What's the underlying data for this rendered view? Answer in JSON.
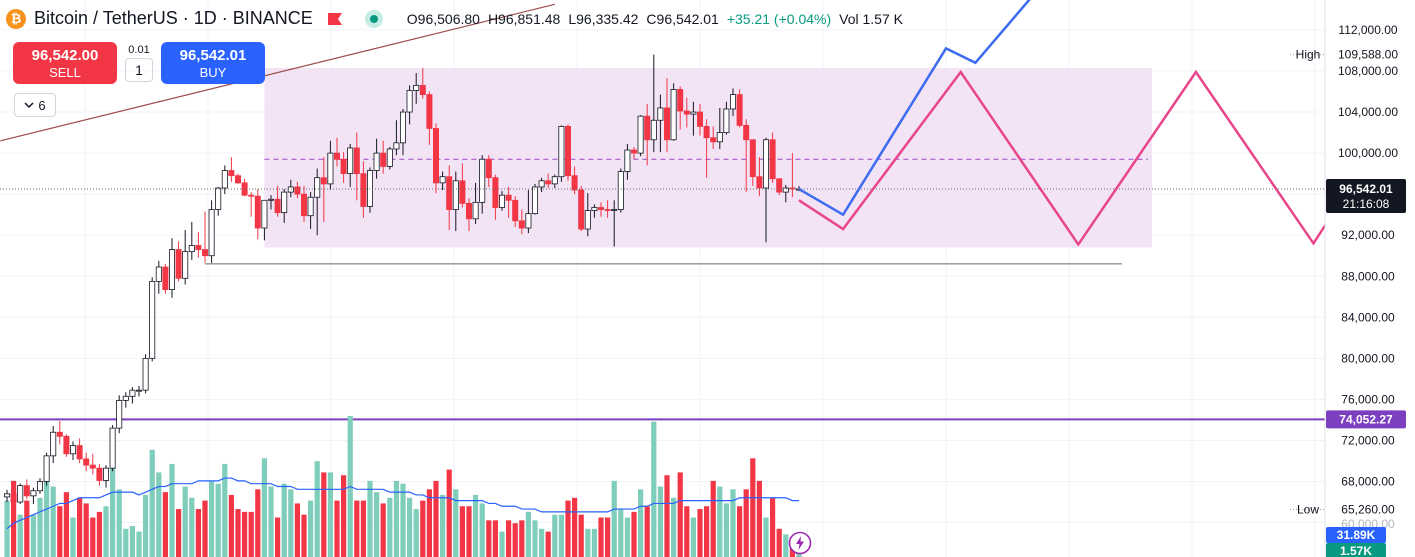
{
  "header": {
    "symbol": "Bitcoin / TetherUS · 1D · BINANCE",
    "open": "O96,506.80",
    "high": "H96,851.48",
    "low": "L96,335.42",
    "close": "C96,542.01",
    "change": "+35.21 (+0.04%)",
    "vol": "Vol 1.57 K"
  },
  "trade": {
    "sell_price": "96,542.00",
    "sell_label": "SELL",
    "buy_price": "96,542.01",
    "buy_label": "BUY",
    "step": "0.01",
    "qty": "1"
  },
  "indicators_count": "6",
  "price_axis": {
    "ticks": [
      "112,000.00",
      "108,000.00",
      "104,000.00",
      "100,000.00",
      "92,000.00",
      "88,000.00",
      "84,000.00",
      "80,000.00",
      "76,000.00",
      "72,000.00",
      "68,000.00"
    ]
  },
  "markers": {
    "high_label": "High",
    "high_value": "109,588.00",
    "low_label": "Low",
    "low_value": "65,260.00",
    "last_price": "96,542.01",
    "countdown": "21:16:08",
    "level": "74,052.27",
    "vol_avg": "31.89K",
    "vol_last": "1.57K",
    "ohlc_cut_value": "60,000.00"
  },
  "colors": {
    "up": "#089981",
    "down": "#f23645",
    "vol_up": "#7fcdbb",
    "vol_down": "#f23645",
    "range_box": "#f2e3f5",
    "level_line": "#7b3fbf",
    "projection_pink": "#e8458b",
    "projection_blue": "#3d6cf0",
    "trend_line": "#9e4a4a",
    "vol_ma": "#2962ff"
  },
  "chart_data": {
    "type": "candlestick",
    "title": "Bitcoin / TetherUS · 1D · BINANCE",
    "ylim": [
      60000,
      114000
    ],
    "candles": [
      [
        66500,
        67200,
        66000,
        66800
      ],
      [
        66800,
        67500,
        66400,
        66000
      ],
      [
        66000,
        67800,
        65800,
        67600
      ],
      [
        67600,
        68200,
        66300,
        66600
      ],
      [
        66600,
        67400,
        65800,
        67100
      ],
      [
        67100,
        68300,
        66800,
        68000
      ],
      [
        68000,
        70800,
        67600,
        70500
      ],
      [
        70500,
        73400,
        69800,
        72800
      ],
      [
        72800,
        73900,
        71600,
        72400
      ],
      [
        72400,
        72600,
        70400,
        70700
      ],
      [
        70700,
        71900,
        70100,
        71500
      ],
      [
        71500,
        72200,
        69800,
        70200
      ],
      [
        70200,
        70800,
        69000,
        69600
      ],
      [
        69600,
        70700,
        68700,
        69300
      ],
      [
        69300,
        69700,
        67600,
        68100
      ],
      [
        68100,
        69600,
        67400,
        69300
      ],
      [
        69300,
        73500,
        69000,
        73200
      ],
      [
        73200,
        76400,
        72700,
        75900
      ],
      [
        75900,
        76700,
        75200,
        76300
      ],
      [
        76300,
        77200,
        75600,
        76900
      ],
      [
        76900,
        77300,
        76300,
        76900
      ],
      [
        76900,
        80400,
        76600,
        80000
      ],
      [
        80000,
        87900,
        79700,
        87500
      ],
      [
        87500,
        89500,
        86300,
        88900
      ],
      [
        88900,
        89200,
        86300,
        86700
      ],
      [
        86700,
        91700,
        85900,
        90600
      ],
      [
        90600,
        91400,
        87500,
        87800
      ],
      [
        87800,
        92500,
        87200,
        90400
      ],
      [
        90400,
        93300,
        89600,
        91000
      ],
      [
        91000,
        92300,
        89800,
        90600
      ],
      [
        90600,
        94300,
        89300,
        90000
      ],
      [
        90000,
        95400,
        89300,
        94500
      ],
      [
        94500,
        96700,
        93900,
        96600
      ],
      [
        96600,
        98800,
        96000,
        98300
      ],
      [
        98300,
        99600,
        97200,
        97800
      ],
      [
        97800,
        98000,
        97000,
        97100
      ],
      [
        97100,
        97500,
        95800,
        95900
      ],
      [
        95900,
        96200,
        93800,
        95800
      ],
      [
        95800,
        96500,
        91600,
        92700
      ],
      [
        92700,
        95400,
        91500,
        95400
      ],
      [
        95400,
        95900,
        94500,
        95500
      ],
      [
        95500,
        96800,
        93800,
        94200
      ],
      [
        94200,
        96500,
        93200,
        96200
      ],
      [
        96200,
        97400,
        95700,
        96700
      ],
      [
        96700,
        97200,
        95600,
        96000
      ],
      [
        96000,
        96800,
        93300,
        93900
      ],
      [
        93900,
        96200,
        92600,
        95700
      ],
      [
        95700,
        98500,
        92000,
        97600
      ],
      [
        97600,
        99600,
        93300,
        97000
      ],
      [
        97000,
        101200,
        96400,
        100000
      ],
      [
        100000,
        101500,
        98700,
        99400
      ],
      [
        99400,
        100100,
        97100,
        98000
      ],
      [
        98000,
        100900,
        96700,
        100500
      ],
      [
        100500,
        102000,
        95400,
        98000
      ],
      [
        98000,
        99200,
        93700,
        94800
      ],
      [
        94800,
        98600,
        94200,
        98300
      ],
      [
        98300,
        101400,
        97500,
        100000
      ],
      [
        100000,
        101200,
        98000,
        98700
      ],
      [
        98700,
        100600,
        98400,
        100400
      ],
      [
        100400,
        103200,
        99800,
        101000
      ],
      [
        101000,
        104300,
        99800,
        104000
      ],
      [
        104000,
        106600,
        102800,
        106100
      ],
      [
        106100,
        107800,
        104800,
        106600
      ],
      [
        106600,
        108300,
        105300,
        105700
      ],
      [
        105700,
        106000,
        100800,
        102400
      ],
      [
        102400,
        102900,
        96100,
        97100
      ],
      [
        97100,
        98200,
        96400,
        97700
      ],
      [
        97700,
        98800,
        92500,
        94500
      ],
      [
        94500,
        98200,
        92400,
        97300
      ],
      [
        97300,
        99000,
        94700,
        95100
      ],
      [
        95100,
        95600,
        92400,
        93600
      ],
      [
        93600,
        97100,
        93100,
        95200
      ],
      [
        95200,
        99800,
        94100,
        99400
      ],
      [
        99400,
        99800,
        96700,
        97600
      ],
      [
        97600,
        97900,
        93500,
        94700
      ],
      [
        94700,
        96300,
        94400,
        95900
      ],
      [
        95900,
        96700,
        93700,
        95400
      ],
      [
        95400,
        95800,
        92800,
        93400
      ],
      [
        93400,
        94500,
        92100,
        92700
      ],
      [
        92700,
        96400,
        92200,
        94100
      ],
      [
        94100,
        97000,
        94000,
        96700
      ],
      [
        96700,
        97600,
        96200,
        97300
      ],
      [
        97300,
        98000,
        96600,
        97000
      ],
      [
        97000,
        97900,
        96600,
        97700
      ],
      [
        97700,
        102700,
        97200,
        102600
      ],
      [
        102600,
        102800,
        97300,
        97800
      ],
      [
        97800,
        98700,
        96000,
        96400
      ],
      [
        96400,
        96800,
        92400,
        92600
      ],
      [
        92600,
        96100,
        91900,
        94400
      ],
      [
        94400,
        95000,
        93700,
        94700
      ],
      [
        94700,
        95200,
        93800,
        94500
      ],
      [
        94500,
        95400,
        93700,
        94400
      ],
      [
        94400,
        95400,
        90900,
        94500
      ],
      [
        94500,
        98500,
        94200,
        98200
      ],
      [
        98200,
        100900,
        97400,
        100300
      ],
      [
        100300,
        100600,
        99400,
        100000
      ],
      [
        100000,
        103700,
        99700,
        103600
      ],
      [
        103600,
        104800,
        98800,
        101300
      ],
      [
        101300,
        109600,
        100100,
        103200
      ],
      [
        103200,
        105700,
        100100,
        104400
      ],
      [
        104400,
        107300,
        100100,
        101300
      ],
      [
        101300,
        106800,
        101200,
        106200
      ],
      [
        106200,
        106500,
        102300,
        104100
      ],
      [
        104100,
        105400,
        102500,
        103800
      ],
      [
        103800,
        105000,
        101700,
        104000
      ],
      [
        104000,
        104800,
        101700,
        102600
      ],
      [
        102600,
        103300,
        97600,
        101500
      ],
      [
        101500,
        102600,
        100400,
        101100
      ],
      [
        101100,
        104400,
        100400,
        102000
      ],
      [
        102000,
        105000,
        101800,
        104300
      ],
      [
        104300,
        106300,
        103600,
        105700
      ],
      [
        105700,
        106200,
        102500,
        102700
      ],
      [
        102700,
        103300,
        96200,
        101300
      ],
      [
        101300,
        101300,
        96800,
        97700
      ],
      [
        97700,
        99600,
        95800,
        96600
      ],
      [
        96600,
        101500,
        91300,
        101300
      ],
      [
        101300,
        102000,
        97100,
        97500
      ],
      [
        97500,
        97500,
        95900,
        96200
      ],
      [
        96200,
        96900,
        95200,
        96600
      ],
      [
        96600,
        100000,
        95700,
        96500
      ],
      [
        96500,
        96800,
        96300,
        96500
      ]
    ],
    "volumes": [
      20,
      27,
      15,
      20,
      15,
      21,
      28,
      25,
      18,
      23,
      14,
      21,
      19,
      14,
      16,
      18,
      34,
      24,
      10,
      11,
      9,
      22,
      38,
      30,
      23,
      33,
      17,
      25,
      21,
      17,
      20,
      27,
      26,
      33,
      22,
      17,
      16,
      16,
      24,
      35,
      25,
      14,
      26,
      24,
      19,
      15,
      20,
      34,
      30,
      30,
      20,
      29,
      50,
      20,
      20,
      27,
      23,
      19,
      21,
      27,
      26,
      21,
      17,
      20,
      24,
      27,
      22,
      31,
      24,
      18,
      18,
      22,
      19,
      13,
      13,
      9,
      13,
      12,
      13,
      16,
      13,
      10,
      9,
      15,
      15,
      20,
      21,
      15,
      10,
      10,
      14,
      14,
      27,
      17,
      14,
      16,
      24,
      18,
      48,
      25,
      29,
      21,
      30,
      18,
      14,
      17,
      18,
      27,
      25,
      19,
      24,
      18,
      24,
      35,
      27,
      14,
      21,
      10,
      8,
      7,
      3
    ],
    "volume_ma": [
      10,
      12,
      13,
      14,
      15,
      16,
      17,
      18,
      19,
      19,
      20,
      21,
      21,
      21,
      21,
      22,
      23,
      23,
      23,
      23,
      22,
      23,
      24,
      25,
      25,
      26,
      26,
      26,
      26,
      27,
      27,
      27,
      27,
      28,
      28,
      27,
      27,
      26,
      26,
      26,
      26,
      25,
      25,
      25,
      24,
      24,
      24,
      24,
      24,
      24,
      24,
      24,
      25,
      24,
      24,
      24,
      24,
      24,
      23,
      23,
      23,
      23,
      22,
      22,
      21,
      21,
      21,
      21,
      20,
      20,
      20,
      20,
      20,
      19,
      19,
      18,
      18,
      18,
      17,
      17,
      17,
      16,
      16,
      16,
      16,
      16,
      16,
      16,
      16,
      16,
      16,
      16,
      17,
      17,
      17,
      17,
      18,
      18,
      19,
      19,
      19,
      19,
      20,
      20,
      20,
      20,
      20,
      20,
      20,
      20,
      20,
      21,
      21,
      21,
      21,
      21,
      21,
      21,
      21,
      20,
      20
    ],
    "support_line": 89200,
    "level_line": 74052.27,
    "range_box": [
      90800,
      108300
    ],
    "range_mid": 99400,
    "projection_pink": [
      [
        0,
        95400
      ],
      [
        3,
        92600
      ],
      [
        11,
        107900
      ],
      [
        19,
        91100
      ],
      [
        27,
        107900
      ],
      [
        35,
        91200
      ],
      [
        44,
        111200
      ],
      [
        47,
        110300
      ]
    ],
    "projection_blue": [
      [
        0,
        96500
      ],
      [
        3,
        94000
      ],
      [
        10,
        110200
      ],
      [
        12,
        108800
      ],
      [
        16,
        115500
      ]
    ],
    "trend_line": [
      [
        -1,
        101200
      ],
      [
        83,
        114500
      ]
    ]
  }
}
